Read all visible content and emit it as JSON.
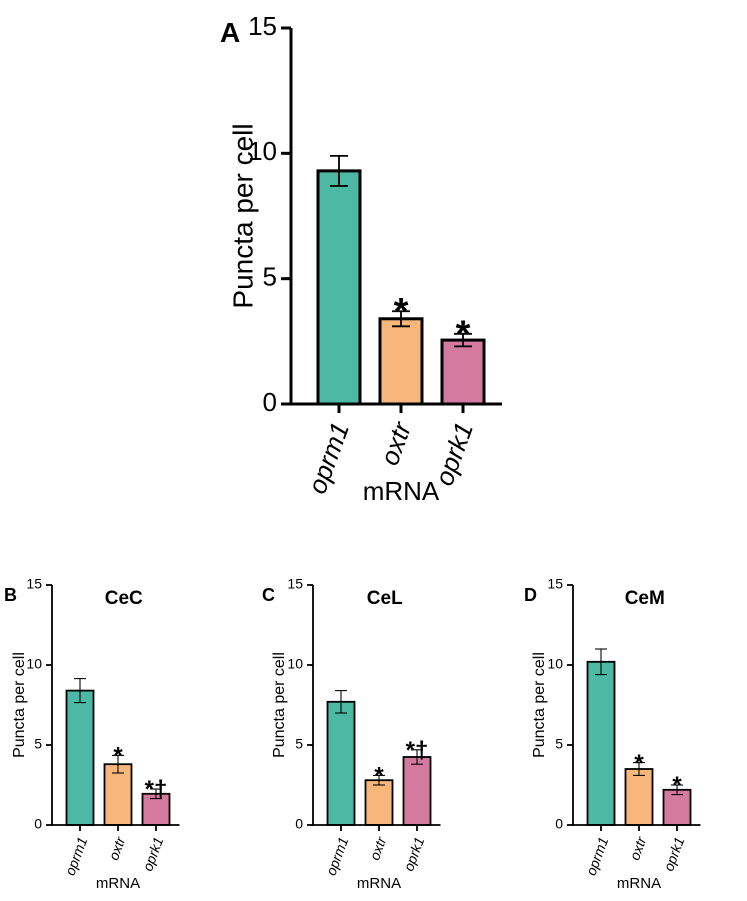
{
  "chart_data": [
    {
      "type": "bar",
      "panel": "A",
      "title": "",
      "xlabel": "mRNA",
      "ylabel": "Puncta per cell",
      "ylim": [
        0,
        15
      ],
      "yticks": [
        "0",
        "5",
        "10",
        "15"
      ],
      "categories": [
        "oprm1",
        "oxtr",
        "oprk1"
      ],
      "values": [
        9.3,
        3.4,
        2.55
      ],
      "errors": [
        0.6,
        0.3,
        0.25
      ],
      "annotations": [
        "",
        "*",
        "*"
      ],
      "colors": [
        "#4db8a4",
        "#f7b77b",
        "#d47a9e"
      ]
    },
    {
      "type": "bar",
      "panel": "B",
      "title": "CeC",
      "xlabel": "mRNA",
      "ylabel": "Puncta per cell",
      "ylim": [
        0,
        15
      ],
      "yticks": [
        "0",
        "5",
        "10",
        "15"
      ],
      "categories": [
        "oprm1",
        "oxtr",
        "oprk1"
      ],
      "values": [
        8.4,
        3.8,
        1.95
      ],
      "errors": [
        0.75,
        0.55,
        0.3
      ],
      "annotations": [
        "",
        "*",
        "*†"
      ],
      "colors": [
        "#4db8a4",
        "#f7b77b",
        "#d47a9e"
      ]
    },
    {
      "type": "bar",
      "panel": "C",
      "title": "CeL",
      "xlabel": "mRNA",
      "ylabel": "Puncta per cell",
      "ylim": [
        0,
        15
      ],
      "yticks": [
        "0",
        "5",
        "10",
        "15"
      ],
      "categories": [
        "oprm1",
        "oxtr",
        "oprk1"
      ],
      "values": [
        7.7,
        2.8,
        4.25
      ],
      "errors": [
        0.7,
        0.3,
        0.45
      ],
      "annotations": [
        "",
        "*",
        "*†"
      ],
      "colors": [
        "#4db8a4",
        "#f7b77b",
        "#d47a9e"
      ]
    },
    {
      "type": "bar",
      "panel": "D",
      "title": "CeM",
      "xlabel": "mRNA",
      "ylabel": "Puncta per cell",
      "ylim": [
        0,
        15
      ],
      "yticks": [
        "0",
        "5",
        "10",
        "15"
      ],
      "categories": [
        "oprm1",
        "oxtr",
        "oprk1"
      ],
      "values": [
        10.2,
        3.5,
        2.2
      ],
      "errors": [
        0.8,
        0.4,
        0.3
      ],
      "annotations": [
        "",
        "*",
        "*"
      ],
      "colors": [
        "#4db8a4",
        "#f7b77b",
        "#d47a9e"
      ]
    }
  ]
}
